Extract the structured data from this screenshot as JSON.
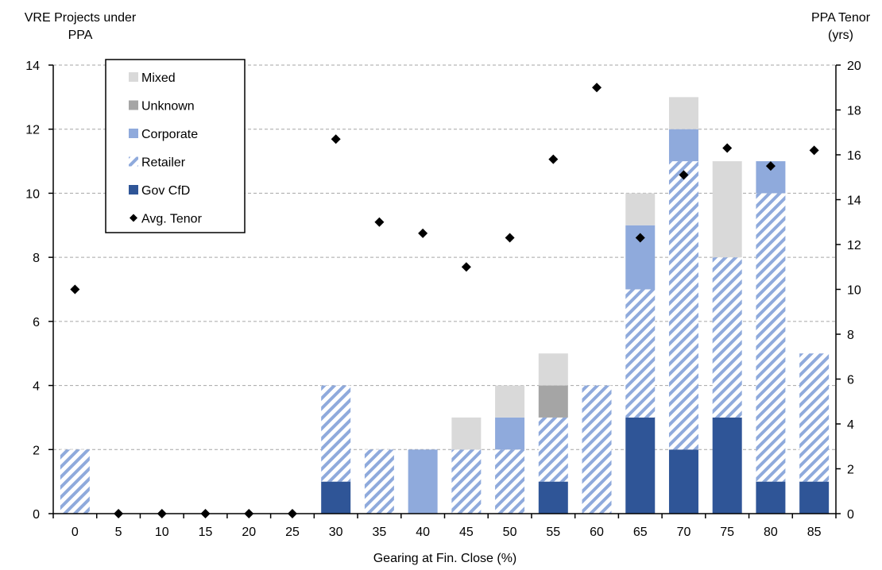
{
  "chart_data": {
    "type": "bar",
    "title": "",
    "categories": [
      "0",
      "5",
      "10",
      "15",
      "20",
      "25",
      "30",
      "35",
      "40",
      "45",
      "50",
      "55",
      "60",
      "65",
      "70",
      "75",
      "80",
      "85"
    ],
    "xlabel": "Gearing at Fin. Close (%)",
    "ylabel_left": [
      "VRE Projects under",
      "PPA"
    ],
    "ylabel_right": [
      "PPA Tenor",
      "(yrs)"
    ],
    "ylim_left": [
      0,
      14
    ],
    "yticks_left": [
      0,
      2,
      4,
      6,
      8,
      10,
      12,
      14
    ],
    "ylim_right": [
      0,
      20
    ],
    "yticks_right": [
      0,
      2,
      4,
      6,
      8,
      10,
      12,
      14,
      16,
      18,
      20
    ],
    "grid": "horizontal dashed",
    "legend_position": "top-left",
    "series": [
      {
        "name": "Gov CfD",
        "color": "#2f5597",
        "pattern": "solid",
        "values": [
          0,
          0,
          0,
          0,
          0,
          0,
          1,
          0,
          0,
          0,
          0,
          1,
          0,
          3,
          2,
          3,
          1,
          1
        ]
      },
      {
        "name": "Retailer",
        "color": "#8faadc",
        "pattern": "hatch",
        "values": [
          2,
          0,
          0,
          0,
          0,
          0,
          3,
          2,
          0,
          2,
          2,
          2,
          4,
          4,
          9,
          5,
          9,
          4
        ]
      },
      {
        "name": "Corporate",
        "color": "#8faadc",
        "pattern": "solid",
        "values": [
          0,
          0,
          0,
          0,
          0,
          0,
          0,
          0,
          2,
          0,
          1,
          0,
          0,
          2,
          1,
          0,
          1,
          0
        ]
      },
      {
        "name": "Unknown",
        "color": "#a5a5a5",
        "pattern": "solid",
        "values": [
          0,
          0,
          0,
          0,
          0,
          0,
          0,
          0,
          0,
          0,
          0,
          1,
          0,
          0,
          0,
          0,
          0,
          0
        ]
      },
      {
        "name": "Mixed",
        "color": "#d9d9d9",
        "pattern": "solid",
        "values": [
          0,
          0,
          0,
          0,
          0,
          0,
          0,
          0,
          0,
          1,
          1,
          1,
          0,
          1,
          1,
          3,
          0,
          0
        ]
      }
    ],
    "line_series": {
      "name": "Avg. Tenor",
      "axis": "right",
      "marker": "diamond",
      "color": "#000000",
      "values": [
        10,
        0,
        0,
        0,
        0,
        0,
        16.7,
        13,
        12.5,
        11,
        12.3,
        15.8,
        19,
        12.3,
        15.1,
        16.3,
        15.5,
        16.2
      ]
    },
    "legend_order": [
      "Mixed",
      "Unknown",
      "Corporate",
      "Retailer",
      "Gov CfD",
      "Avg. Tenor"
    ]
  }
}
